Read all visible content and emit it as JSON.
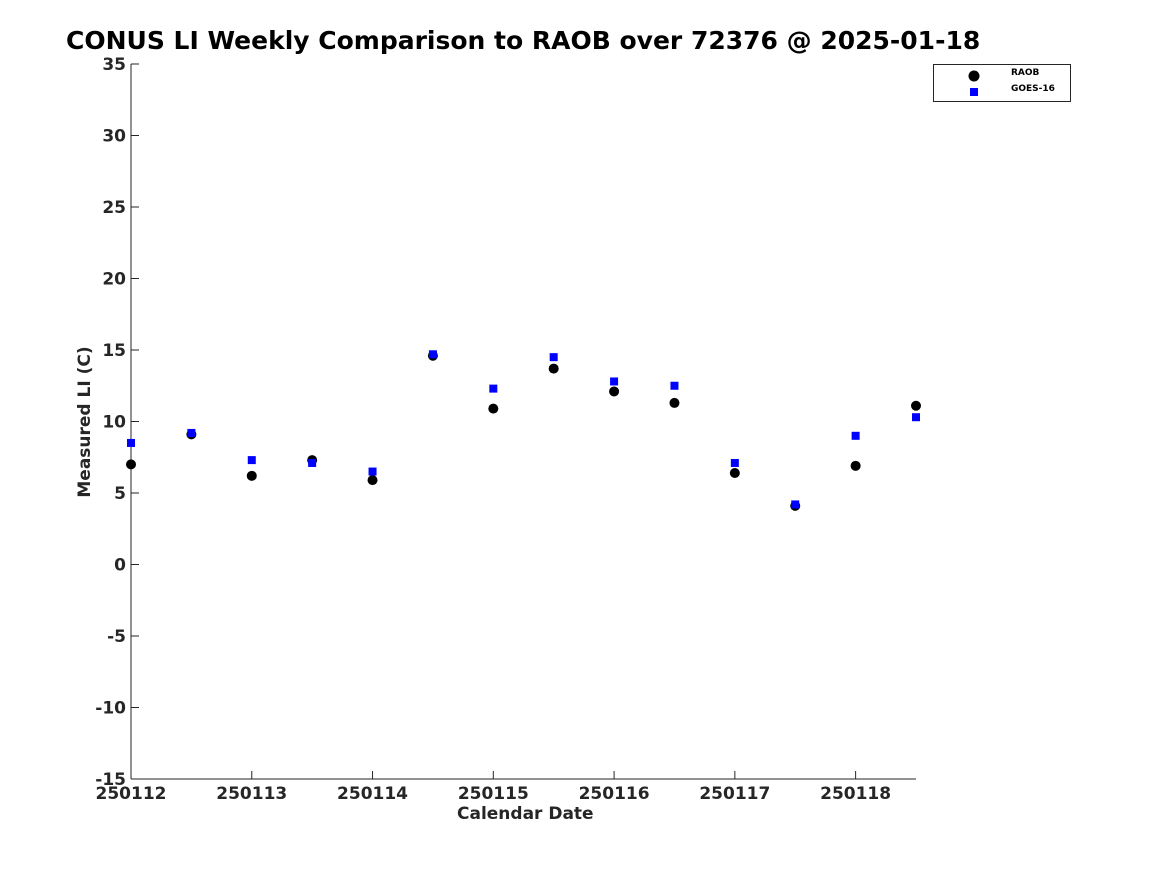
{
  "chart_data": {
    "type": "scatter",
    "title": "CONUS LI Weekly Comparison to RAOB over 72376 @ 2025-01-18",
    "xlabel": "Calendar Date",
    "ylabel": "Measured LI (C)",
    "xlim": [
      "250112 00Z",
      "250118 12Z"
    ],
    "ylim": [
      -15,
      35
    ],
    "x_tick_labels": [
      "250112",
      "250113",
      "250114",
      "250115",
      "250116",
      "250117",
      "250118"
    ],
    "y_ticks": [
      35,
      30,
      25,
      20,
      15,
      10,
      5,
      0,
      -5,
      -10,
      -15
    ],
    "grid": false,
    "legend_position": "top-right",
    "x": [
      "250112 00Z",
      "250112 12Z",
      "250113 00Z",
      "250113 12Z",
      "250114 00Z",
      "250114 12Z",
      "250115 00Z",
      "250115 12Z",
      "250116 00Z",
      "250116 12Z",
      "250117 00Z",
      "250117 12Z",
      "250118 00Z",
      "250118 12Z"
    ],
    "series": [
      {
        "name": "RAOB",
        "marker": "circle",
        "color": "#000000",
        "values": [
          7.0,
          9.1,
          6.2,
          7.3,
          5.9,
          14.6,
          10.9,
          13.7,
          12.1,
          11.3,
          6.4,
          4.1,
          6.9,
          11.1
        ]
      },
      {
        "name": "GOES-16",
        "marker": "square",
        "color": "#0000ff",
        "values": [
          8.5,
          9.2,
          7.3,
          7.1,
          6.5,
          14.7,
          12.3,
          14.5,
          12.8,
          12.5,
          7.1,
          4.2,
          9.0,
          10.3
        ]
      }
    ]
  }
}
